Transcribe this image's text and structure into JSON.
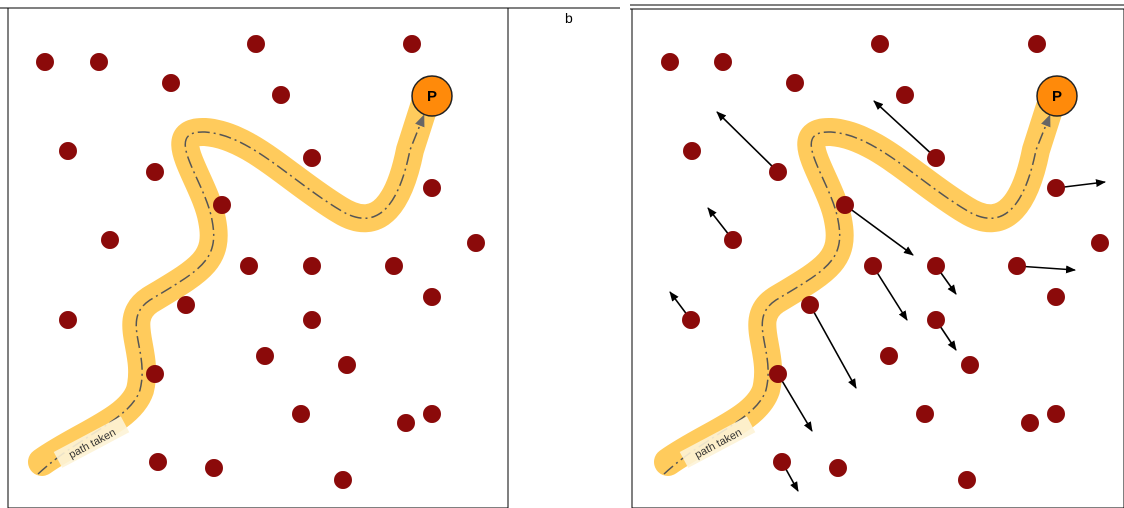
{
  "panel_b_label": "b",
  "particle_label": "P",
  "path_label": "path taken",
  "colors": {
    "dot": "#8b0a0a",
    "path": "#ffcb5c",
    "particle": "#ff8a0a",
    "arrow": "#000000",
    "frame": "#000000"
  }
}
